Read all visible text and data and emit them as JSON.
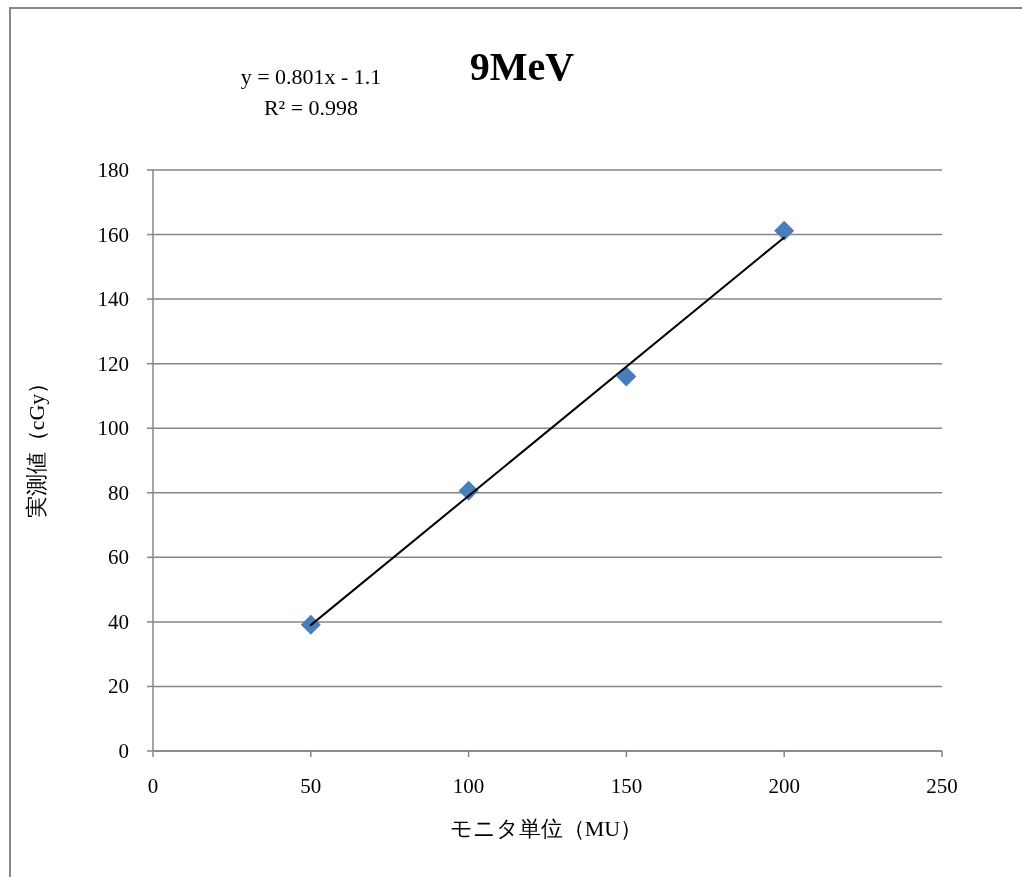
{
  "chart_data": {
    "type": "scatter",
    "title": "9MeV",
    "xlabel": "モニタ単位（MU）",
    "ylabel": "実測値（cGy）",
    "annotations": [
      "y = 0.801x - 1.1",
      "R² = 0.998"
    ],
    "x": [
      50,
      100,
      150,
      200
    ],
    "series": [
      {
        "type": "scatter",
        "color": "#4a7ebb",
        "marker": "diamond",
        "values": [
          39.1,
          80.6,
          116,
          161.2
        ]
      },
      {
        "type": "line",
        "color": "#000000",
        "marker": "none",
        "line_style": "solid",
        "x": [
          50,
          200
        ],
        "values": [
          39,
          159.1
        ]
      }
    ],
    "xlim": [
      0,
      250
    ],
    "xticks": [
      0,
      50,
      100,
      150,
      200,
      250
    ],
    "ylim": [
      0,
      180
    ],
    "yticks": [
      0,
      20,
      40,
      60,
      80,
      100,
      120,
      140,
      160,
      180
    ],
    "grid": "y"
  }
}
